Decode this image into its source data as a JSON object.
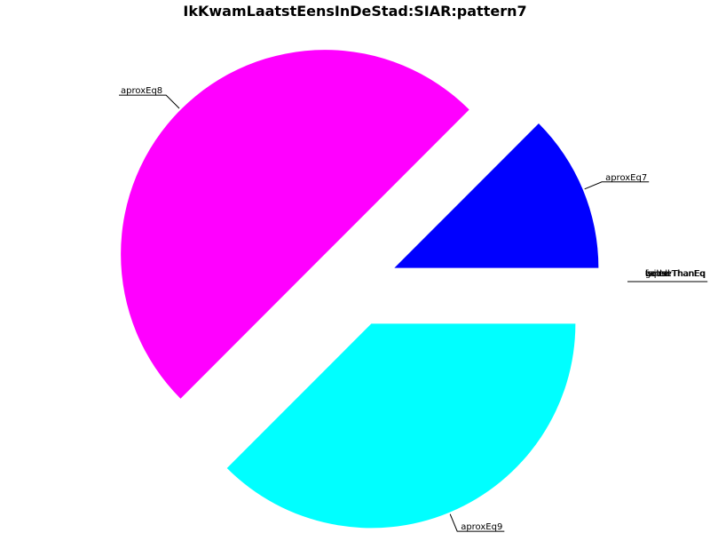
{
  "chart_data": {
    "type": "pie",
    "title": "IkKwamLaatstEensInDeStad:SIAR:pattern7",
    "slices": [
      {
        "label": "aproxEq7",
        "value": 12.5,
        "color": "#0000ff"
      },
      {
        "label": "aproxEq8",
        "value": 50.0,
        "color": "#ff00ff"
      },
      {
        "label": "aproxEq9",
        "value": 37.5,
        "color": "#00ffff"
      }
    ],
    "zero_slice_labels": [
      "bad",
      "betterThanEq",
      "equal",
      "worseThanEq",
      "good",
      "failed"
    ],
    "start_angle_deg": 0,
    "direction": "counterclockwise",
    "exploded": true
  }
}
